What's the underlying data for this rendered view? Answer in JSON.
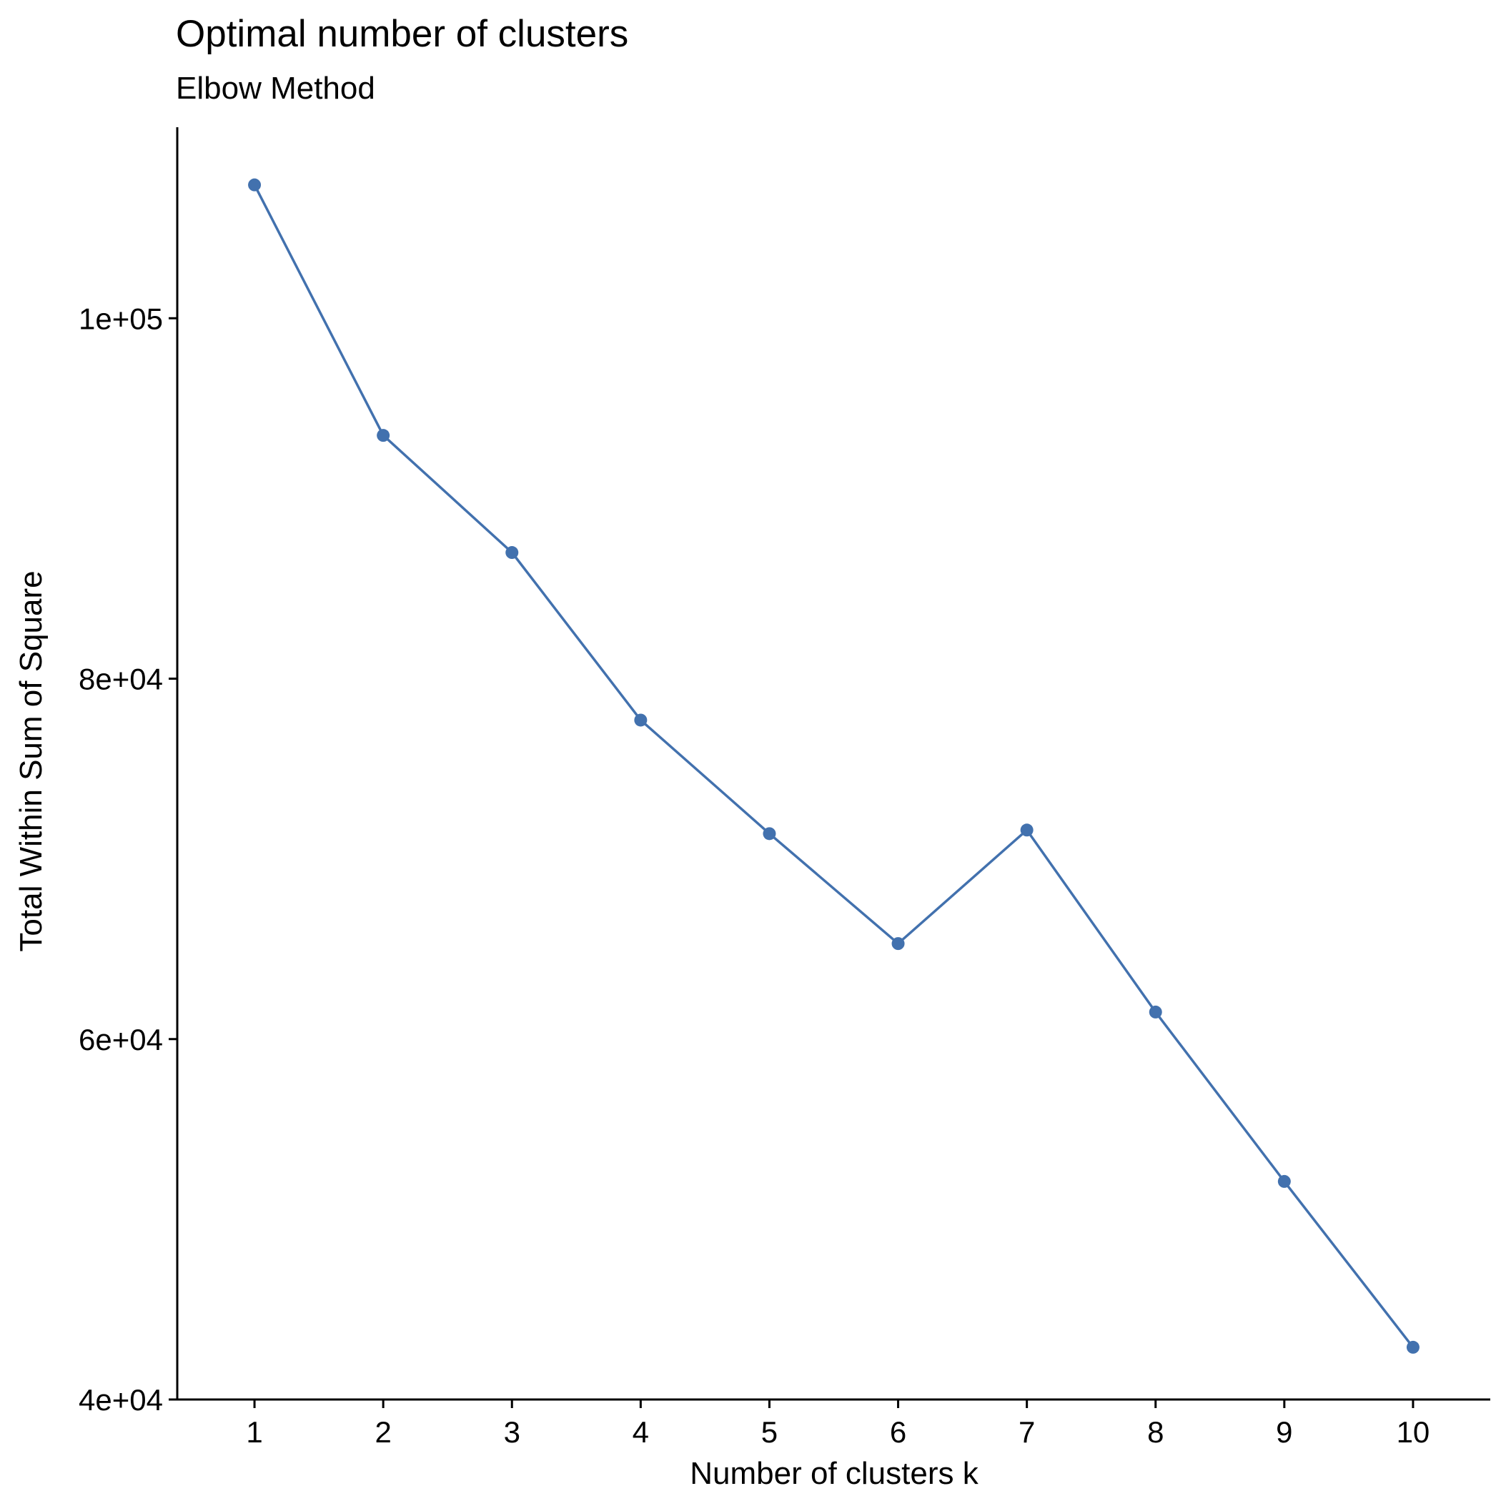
{
  "chart_data": {
    "type": "line",
    "title": "Optimal number of clusters",
    "subtitle": "Elbow Method",
    "xlabel": "Number of clusters k",
    "ylabel": "Total Within Sum of Square",
    "x": [
      1,
      2,
      3,
      4,
      5,
      6,
      7,
      8,
      9,
      10
    ],
    "series": [
      {
        "values": [
          107400,
          93500,
          87000,
          77700,
          71400,
          65300,
          71600,
          61500,
          52100,
          42900
        ],
        "color": "#4271AE",
        "markers": true
      }
    ],
    "xticks": [
      "1",
      "2",
      "3",
      "4",
      "5",
      "6",
      "7",
      "8",
      "9",
      "10"
    ],
    "yticks": [
      {
        "value": 40000,
        "label": "4e+04"
      },
      {
        "value": 60000,
        "label": "6e+04"
      },
      {
        "value": 80000,
        "label": "8e+04"
      },
      {
        "value": 100000,
        "label": "1e+05"
      }
    ],
    "xlim": [
      0.4,
      10.6
    ],
    "ylim": [
      40000,
      110600
    ],
    "grid": false,
    "legend": "none"
  }
}
